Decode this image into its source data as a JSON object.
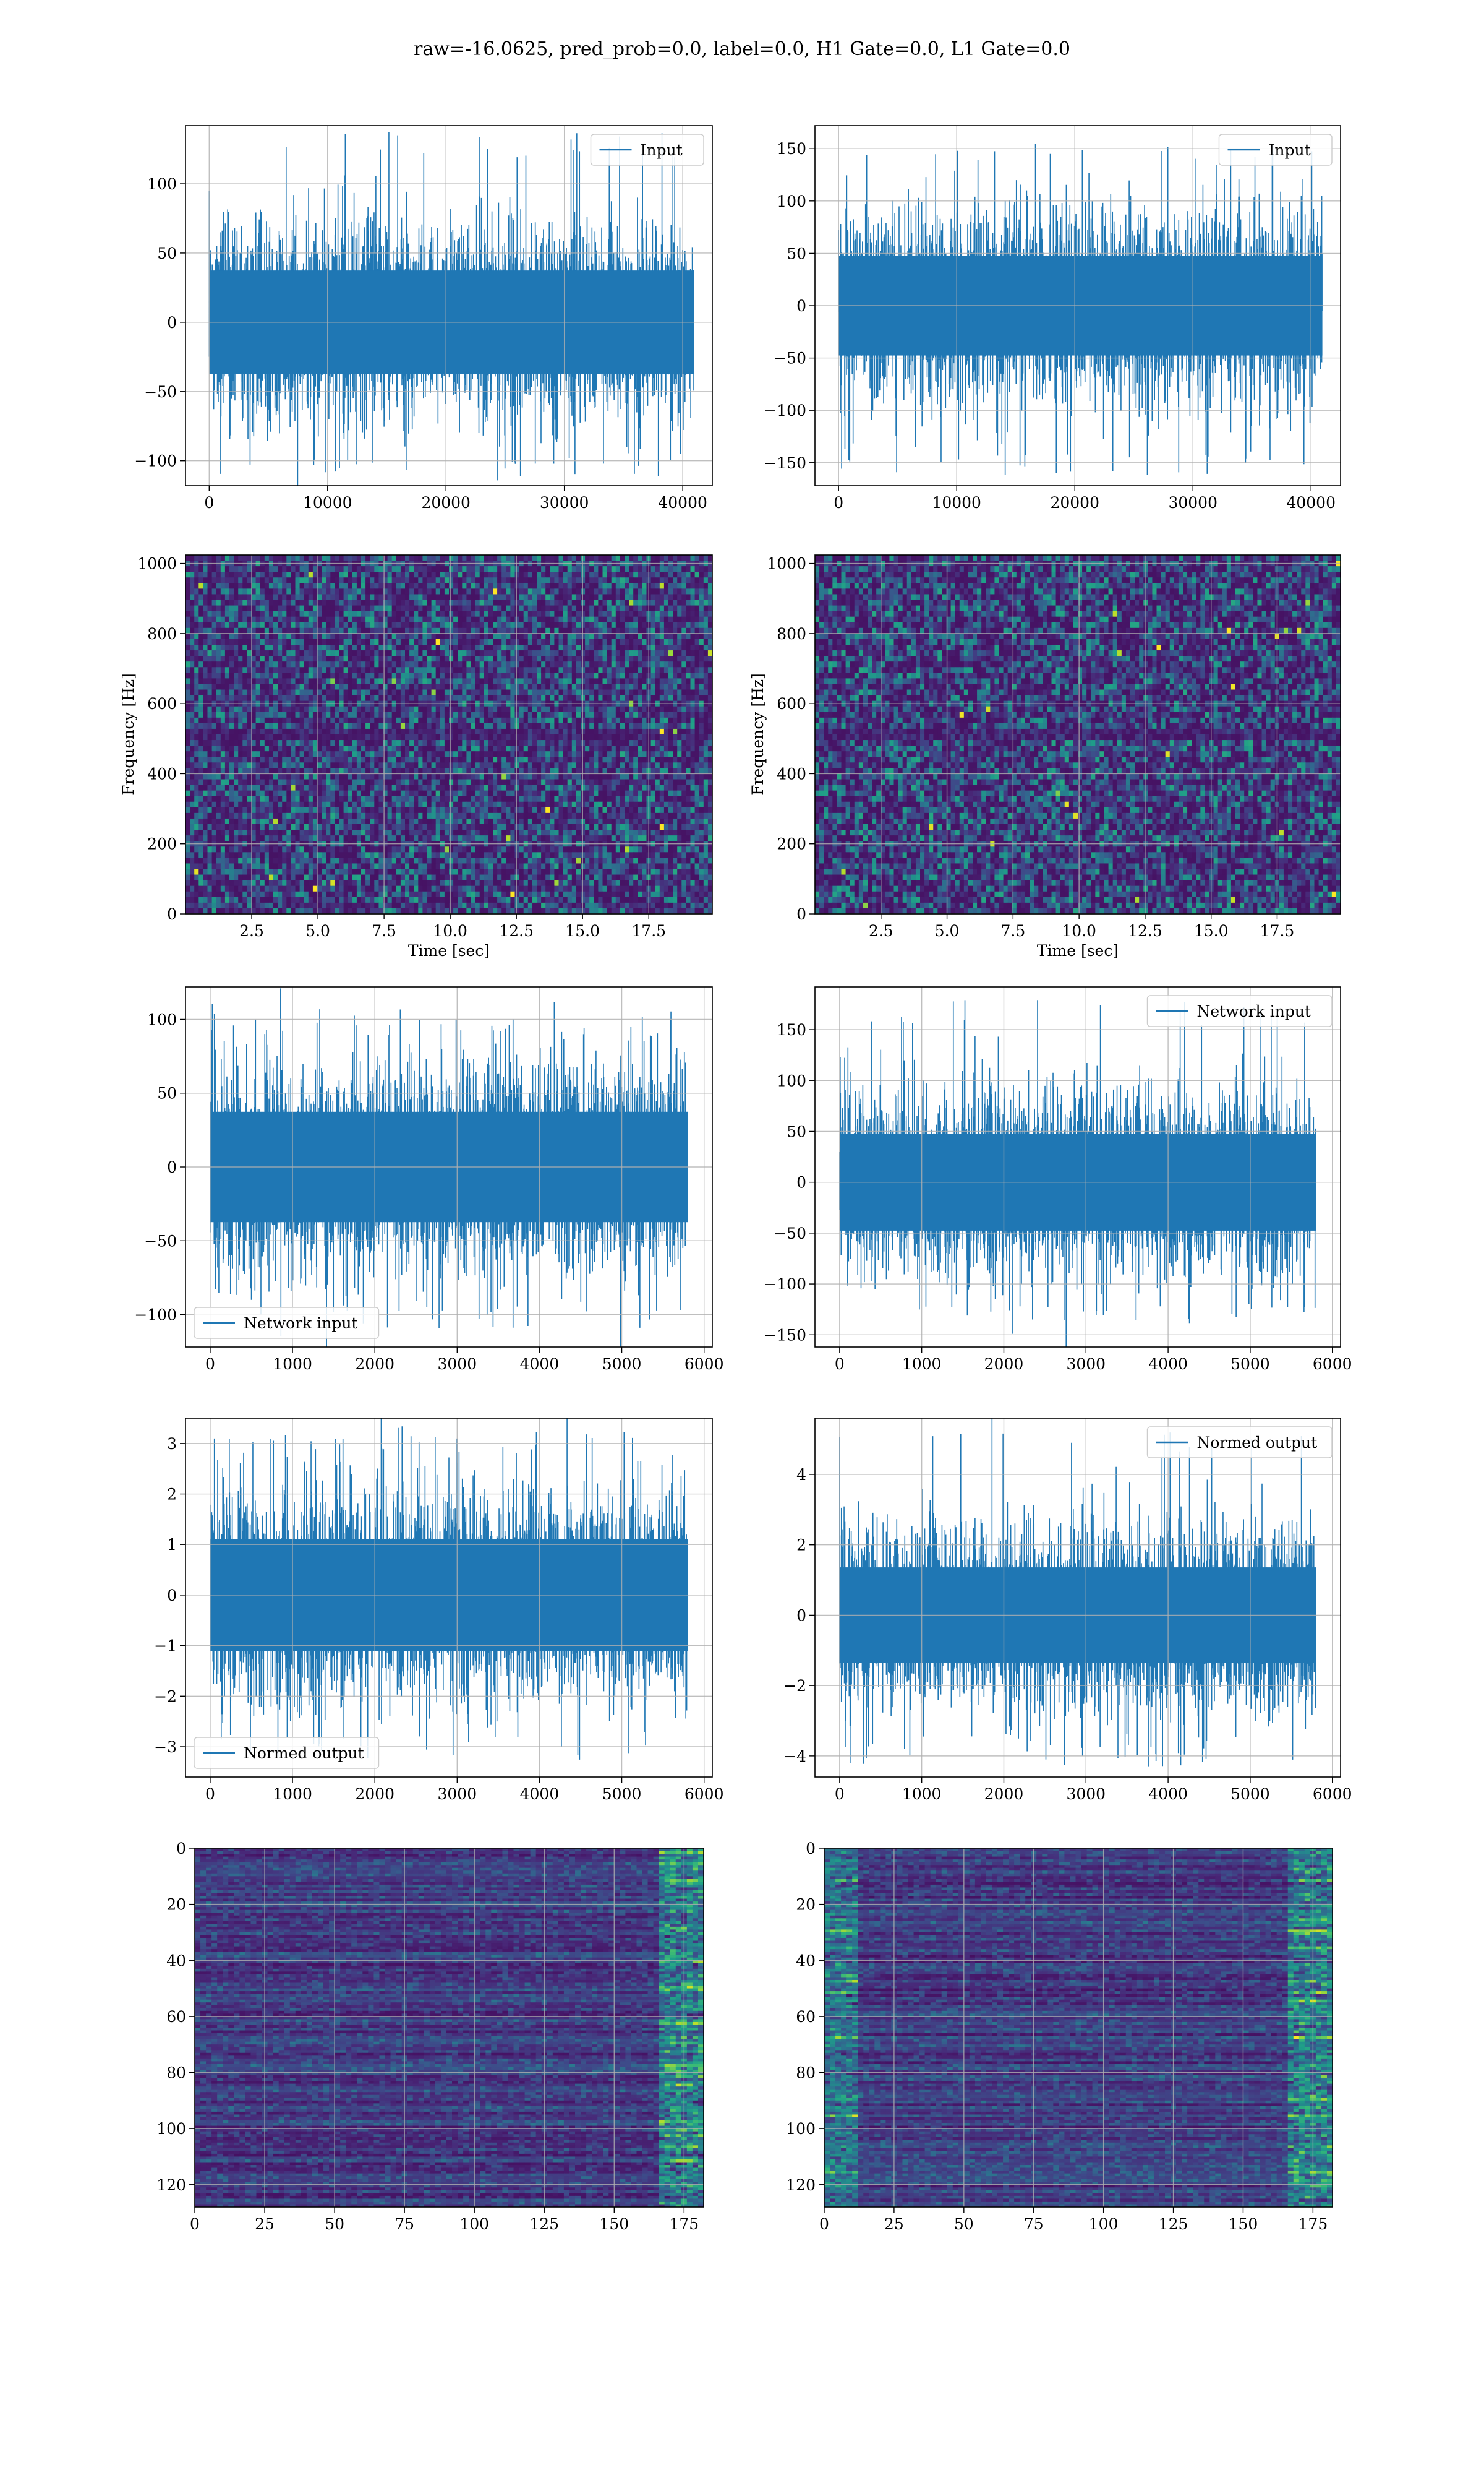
{
  "figure": {
    "title": "raw=-16.0625, pred_prob=0.0, label=0.0, H1 Gate=0.0, L1 Gate=0.0"
  },
  "colors": {
    "line": "#1f77b4",
    "grid": "#b0b0b0",
    "viridis_low": "#440154",
    "viridis_high": "#fde725"
  },
  "chart_data": [
    {
      "id": "p0",
      "type": "line",
      "row": 0,
      "col": 0,
      "xlim": [
        -2000,
        42500
      ],
      "ylim": [
        -118,
        142
      ],
      "xticks": [
        0,
        10000,
        20000,
        30000,
        40000
      ],
      "yticks": [
        -100,
        -50,
        0,
        50,
        100
      ],
      "legend": {
        "label": "Input",
        "loc": "top-right"
      },
      "series": {
        "n": 40960,
        "x_start": 0,
        "x_end": 40960,
        "sigma": 22,
        "peak_max": 138,
        "peak_min": -115
      },
      "xlabel": "",
      "ylabel": ""
    },
    {
      "id": "p1",
      "type": "line",
      "row": 0,
      "col": 1,
      "xlim": [
        -2000,
        42500
      ],
      "ylim": [
        -172,
        172
      ],
      "xticks": [
        0,
        10000,
        20000,
        30000,
        40000
      ],
      "yticks": [
        -150,
        -100,
        -50,
        0,
        50,
        100,
        150
      ],
      "legend": {
        "label": "Input",
        "loc": "top-right"
      },
      "series": {
        "n": 40960,
        "x_start": 0,
        "x_end": 40960,
        "sigma": 28,
        "peak_max": 158,
        "peak_min": -162
      },
      "xlabel": "",
      "ylabel": ""
    },
    {
      "id": "p2",
      "type": "heatmap",
      "row": 1,
      "col": 0,
      "xlim": [
        0,
        19.9
      ],
      "ylim": [
        0,
        1024
      ],
      "xticks": [
        2.5,
        5.0,
        7.5,
        10.0,
        12.5,
        15.0,
        17.5
      ],
      "yticks": [
        0,
        200,
        400,
        600,
        800,
        1000
      ],
      "xtick_labels": [
        "2.5",
        "5.0",
        "7.5",
        "10.0",
        "12.5",
        "15.0",
        "17.5"
      ],
      "xlabel": "Time [sec]",
      "ylabel": "Frequency [Hz]",
      "colormap": "viridis"
    },
    {
      "id": "p3",
      "type": "heatmap",
      "row": 1,
      "col": 1,
      "xlim": [
        0,
        19.9
      ],
      "ylim": [
        0,
        1024
      ],
      "xticks": [
        2.5,
        5.0,
        7.5,
        10.0,
        12.5,
        15.0,
        17.5
      ],
      "yticks": [
        0,
        200,
        400,
        600,
        800,
        1000
      ],
      "xtick_labels": [
        "2.5",
        "5.0",
        "7.5",
        "10.0",
        "12.5",
        "15.0",
        "17.5"
      ],
      "xlabel": "Time [sec]",
      "ylabel": "Frequency [Hz]",
      "colormap": "viridis"
    },
    {
      "id": "p4",
      "type": "line",
      "row": 2,
      "col": 0,
      "xlim": [
        -300,
        6100
      ],
      "ylim": [
        -122,
        122
      ],
      "xticks": [
        0,
        1000,
        2000,
        3000,
        4000,
        5000,
        6000
      ],
      "yticks": [
        -100,
        -50,
        0,
        50,
        100
      ],
      "legend": {
        "label": "Network input",
        "loc": "bottom-left"
      },
      "series": {
        "n": 5800,
        "x_start": 0,
        "x_end": 5800,
        "sigma": 22,
        "peak_max": 112,
        "peak_min": -110
      },
      "xlabel": "",
      "ylabel": ""
    },
    {
      "id": "p5",
      "type": "line",
      "row": 2,
      "col": 1,
      "xlim": [
        -300,
        6100
      ],
      "ylim": [
        -162,
        192
      ],
      "xticks": [
        0,
        1000,
        2000,
        3000,
        4000,
        5000,
        6000
      ],
      "yticks": [
        -150,
        -100,
        -50,
        0,
        50,
        100,
        150
      ],
      "legend": {
        "label": "Network input",
        "loc": "top-right"
      },
      "series": {
        "n": 5800,
        "x_start": 0,
        "x_end": 5800,
        "sigma": 28,
        "peak_max": 180,
        "peak_min": -143
      },
      "xlabel": "",
      "ylabel": ""
    },
    {
      "id": "p6",
      "type": "line",
      "row": 3,
      "col": 0,
      "xlim": [
        -300,
        6100
      ],
      "ylim": [
        -3.6,
        3.5
      ],
      "xticks": [
        0,
        1000,
        2000,
        3000,
        4000,
        5000,
        6000
      ],
      "yticks": [
        -3,
        -2,
        -1,
        0,
        1,
        2,
        3
      ],
      "legend": {
        "label": "Normed output",
        "loc": "bottom-left"
      },
      "series": {
        "n": 5800,
        "x_start": 0,
        "x_end": 5800,
        "sigma": 0.65,
        "peak_max": 3.25,
        "peak_min": -3.25
      },
      "xlabel": "",
      "ylabel": ""
    },
    {
      "id": "p7",
      "type": "line",
      "row": 3,
      "col": 1,
      "xlim": [
        -300,
        6100
      ],
      "ylim": [
        -4.6,
        5.6
      ],
      "xticks": [
        0,
        1000,
        2000,
        3000,
        4000,
        5000,
        6000
      ],
      "yticks": [
        -4,
        -2,
        0,
        2,
        4
      ],
      "legend": {
        "label": "Normed output",
        "loc": "top-right"
      },
      "series": {
        "n": 5800,
        "x_start": 0,
        "x_end": 5800,
        "sigma": 0.8,
        "peak_max": 5.3,
        "peak_min": -4.3
      },
      "xlabel": "",
      "ylabel": ""
    },
    {
      "id": "p8",
      "type": "heatmap",
      "row": 4,
      "col": 0,
      "xlim": [
        0,
        182
      ],
      "ylim": [
        128,
        0
      ],
      "y_inverted": true,
      "xticks": [
        0,
        25,
        50,
        75,
        100,
        125,
        150,
        175
      ],
      "yticks": [
        0,
        20,
        40,
        60,
        80,
        100,
        120
      ],
      "xtick_labels": [
        "0",
        "25",
        "50",
        "75",
        "100",
        "125",
        "150",
        "175"
      ],
      "xlabel": "",
      "ylabel": "",
      "colormap": "viridis"
    },
    {
      "id": "p9",
      "type": "heatmap",
      "row": 4,
      "col": 1,
      "xlim": [
        0,
        182
      ],
      "ylim": [
        128,
        0
      ],
      "y_inverted": true,
      "xticks": [
        0,
        25,
        50,
        75,
        100,
        125,
        150,
        175
      ],
      "yticks": [
        0,
        20,
        40,
        60,
        80,
        100,
        120
      ],
      "xtick_labels": [
        "0",
        "25",
        "50",
        "75",
        "100",
        "125",
        "150",
        "175"
      ],
      "xlabel": "",
      "ylabel": "",
      "colormap": "viridis"
    }
  ]
}
